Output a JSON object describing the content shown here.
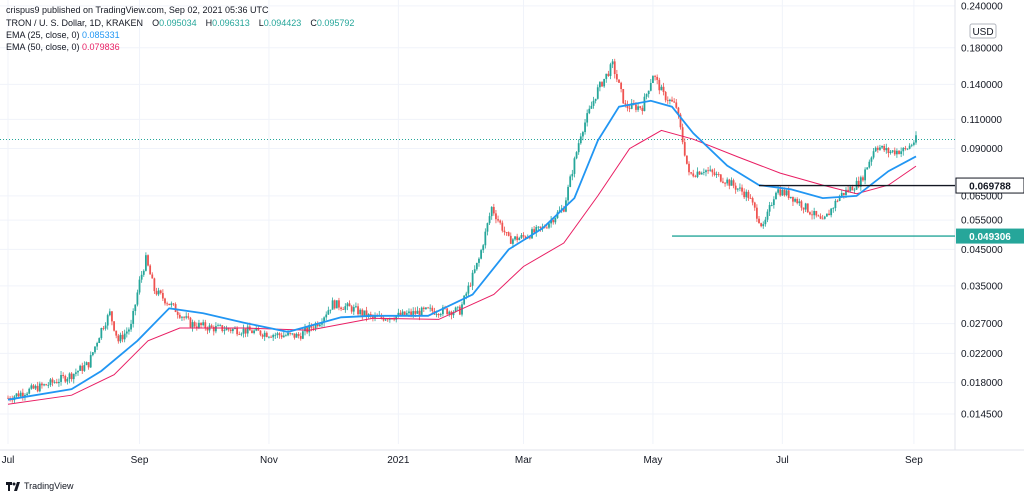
{
  "header": {
    "published": "crispus9 published on TradingView.com, Sep 02, 2021 05:36 UTC",
    "symbol_line": "TRON / U. S. Dollar, 1D, KRAKEN",
    "ohlc": {
      "o_label": "O",
      "o_value": "0.095034",
      "h_label": "H",
      "h_value": "0.096313",
      "l_label": "L",
      "l_value": "0.094423",
      "c_label": "C",
      "c_value": "0.095792"
    },
    "ema25": {
      "label": "EMA (25, close, 0)",
      "value": "0.085331"
    },
    "ema50": {
      "label": "EMA (50, close, 0)",
      "value": "0.079836"
    }
  },
  "footer": {
    "brand": "TradingView"
  },
  "colors": {
    "up": "#26a69a",
    "down": "#ef5350",
    "ema25": "#2196f3",
    "ema50": "#e91e63",
    "support": "#26a69a",
    "resistance": "#131722",
    "grid": "#f0f3fa",
    "price_line": "#26a69a"
  },
  "chart_data": {
    "type": "candlestick",
    "scale": "log",
    "currency": "USD",
    "x_tick_labels": [
      "Jul",
      "Sep",
      "Nov",
      "2021",
      "Mar",
      "May",
      "Jul",
      "Sep"
    ],
    "y_tick_labels": [
      "0.240000",
      "0.180000",
      "0.140000",
      "0.110000",
      "0.090000",
      "0.065000",
      "0.055000",
      "0.045000",
      "0.035000",
      "0.027000",
      "0.022000",
      "0.018000",
      "0.014500"
    ],
    "y_range": [
      0.0118,
      0.25
    ],
    "x_range": [
      "2020-07-01",
      "2021-09-02"
    ],
    "grid": true,
    "horizontal_levels": [
      {
        "label": "0.069788",
        "value": 0.069788,
        "from": "2021-06-20",
        "to": "2021-09-02",
        "role": "resistance"
      },
      {
        "label": "0.049306",
        "value": 0.049306,
        "from": "2021-05-10",
        "to": "2021-09-02",
        "role": "support"
      }
    ],
    "last_price": 0.095792,
    "series": [
      {
        "name": "TRON / U. S. Dollar",
        "kind": "close",
        "points": [
          [
            "2020-07-01",
            0.0162
          ],
          [
            "2020-07-10",
            0.017
          ],
          [
            "2020-07-20",
            0.0178
          ],
          [
            "2020-07-31",
            0.019
          ],
          [
            "2020-08-08",
            0.0205
          ],
          [
            "2020-08-14",
            0.026
          ],
          [
            "2020-08-18",
            0.029
          ],
          [
            "2020-08-22",
            0.024
          ],
          [
            "2020-08-28",
            0.0265
          ],
          [
            "2020-09-01",
            0.036
          ],
          [
            "2020-09-04",
            0.042
          ],
          [
            "2020-09-08",
            0.034
          ],
          [
            "2020-09-15",
            0.031
          ],
          [
            "2020-09-25",
            0.027
          ],
          [
            "2020-10-05",
            0.0262
          ],
          [
            "2020-10-20",
            0.0258
          ],
          [
            "2020-11-05",
            0.025
          ],
          [
            "2020-11-15",
            0.0248
          ],
          [
            "2020-11-25",
            0.0275
          ],
          [
            "2020-12-01",
            0.031
          ],
          [
            "2020-12-10",
            0.03
          ],
          [
            "2020-12-20",
            0.028
          ],
          [
            "2021-01-01",
            0.0285
          ],
          [
            "2021-01-15",
            0.0295
          ],
          [
            "2021-01-30",
            0.0295
          ],
          [
            "2021-02-08",
            0.042
          ],
          [
            "2021-02-14",
            0.06
          ],
          [
            "2021-02-22",
            0.048
          ],
          [
            "2021-03-01",
            0.049
          ],
          [
            "2021-03-10",
            0.052
          ],
          [
            "2021-03-20",
            0.06
          ],
          [
            "2021-03-28",
            0.1
          ],
          [
            "2021-04-05",
            0.135
          ],
          [
            "2021-04-12",
            0.16
          ],
          [
            "2021-04-18",
            0.12
          ],
          [
            "2021-04-26",
            0.12
          ],
          [
            "2021-05-01",
            0.15
          ],
          [
            "2021-05-06",
            0.13
          ],
          [
            "2021-05-12",
            0.12
          ],
          [
            "2021-05-18",
            0.075
          ],
          [
            "2021-05-25",
            0.078
          ],
          [
            "2021-06-05",
            0.072
          ],
          [
            "2021-06-15",
            0.065
          ],
          [
            "2021-06-22",
            0.052
          ],
          [
            "2021-06-28",
            0.068
          ],
          [
            "2021-07-05",
            0.065
          ],
          [
            "2021-07-12",
            0.06
          ],
          [
            "2021-07-20",
            0.054
          ],
          [
            "2021-07-28",
            0.065
          ],
          [
            "2021-08-07",
            0.072
          ],
          [
            "2021-08-14",
            0.092
          ],
          [
            "2021-08-20",
            0.088
          ],
          [
            "2021-08-28",
            0.089
          ],
          [
            "2021-09-02",
            0.0958
          ]
        ]
      },
      {
        "name": "EMA (25, close, 0)",
        "points": [
          [
            "2020-07-01",
            0.016
          ],
          [
            "2020-07-31",
            0.0172
          ],
          [
            "2020-08-14",
            0.0195
          ],
          [
            "2020-08-31",
            0.024
          ],
          [
            "2020-09-15",
            0.03
          ],
          [
            "2020-10-01",
            0.029
          ],
          [
            "2020-10-20",
            0.0272
          ],
          [
            "2020-11-10",
            0.0255
          ],
          [
            "2020-12-05",
            0.0282
          ],
          [
            "2020-12-20",
            0.0285
          ],
          [
            "2021-01-15",
            0.0285
          ],
          [
            "2021-02-05",
            0.033
          ],
          [
            "2021-02-22",
            0.045
          ],
          [
            "2021-03-10",
            0.052
          ],
          [
            "2021-03-25",
            0.064
          ],
          [
            "2021-04-05",
            0.095
          ],
          [
            "2021-04-15",
            0.12
          ],
          [
            "2021-04-30",
            0.125
          ],
          [
            "2021-05-10",
            0.12
          ],
          [
            "2021-05-20",
            0.1
          ],
          [
            "2021-06-05",
            0.08
          ],
          [
            "2021-06-20",
            0.07
          ],
          [
            "2021-07-05",
            0.068
          ],
          [
            "2021-07-20",
            0.064
          ],
          [
            "2021-08-05",
            0.065
          ],
          [
            "2021-08-20",
            0.077
          ],
          [
            "2021-09-02",
            0.0853
          ]
        ]
      },
      {
        "name": "EMA (50, close, 0)",
        "points": [
          [
            "2020-07-01",
            0.0155
          ],
          [
            "2020-07-31",
            0.0165
          ],
          [
            "2020-08-20",
            0.019
          ],
          [
            "2020-09-05",
            0.024
          ],
          [
            "2020-09-20",
            0.0262
          ],
          [
            "2020-10-20",
            0.0262
          ],
          [
            "2020-11-20",
            0.0258
          ],
          [
            "2020-12-20",
            0.028
          ],
          [
            "2021-01-20",
            0.0278
          ],
          [
            "2021-02-15",
            0.033
          ],
          [
            "2021-03-01",
            0.04
          ],
          [
            "2021-03-20",
            0.047
          ],
          [
            "2021-04-05",
            0.065
          ],
          [
            "2021-04-20",
            0.09
          ],
          [
            "2021-05-05",
            0.102
          ],
          [
            "2021-05-20",
            0.096
          ],
          [
            "2021-06-10",
            0.085
          ],
          [
            "2021-06-30",
            0.076
          ],
          [
            "2021-07-20",
            0.07
          ],
          [
            "2021-08-05",
            0.066
          ],
          [
            "2021-08-20",
            0.07
          ],
          [
            "2021-09-02",
            0.0798
          ]
        ]
      }
    ]
  }
}
